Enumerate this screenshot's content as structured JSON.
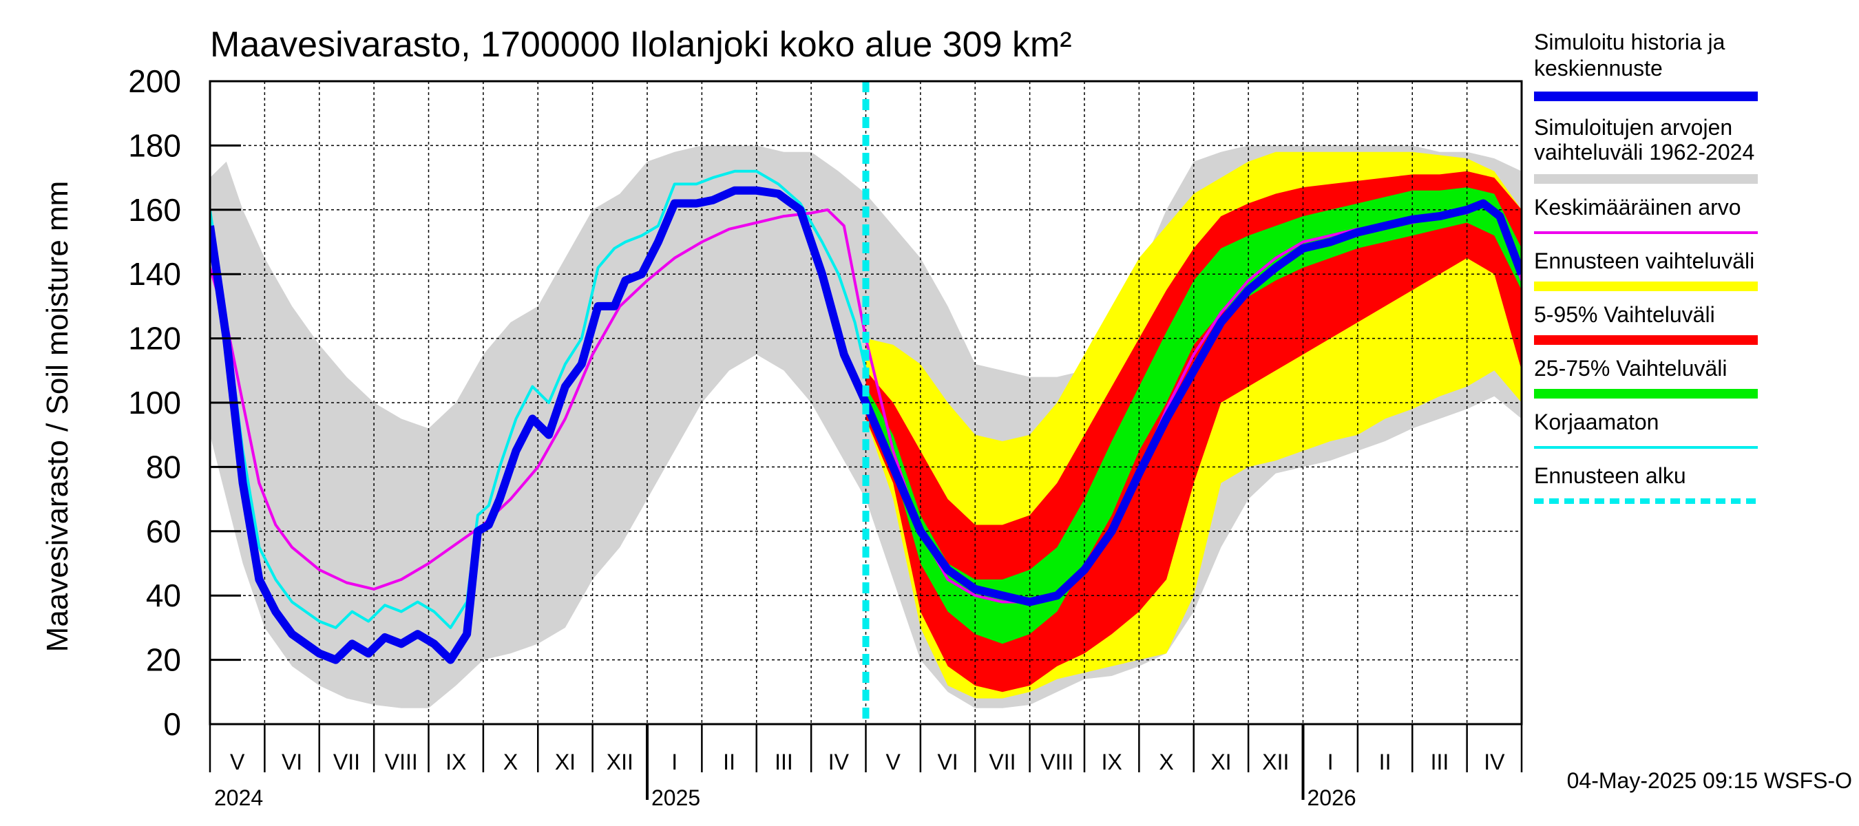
{
  "chart_data": {
    "type": "line",
    "title": "Maavesivarasto, 1700000 Ilolanjoki koko alue 309 km²",
    "ylabel": "Maavesivarasto / Soil moisture   mm",
    "ylim": [
      0,
      200
    ],
    "yticks": [
      "0",
      "20",
      "40",
      "60",
      "80",
      "100",
      "120",
      "140",
      "160",
      "180",
      "200"
    ],
    "ytick_values": [
      0,
      20,
      40,
      60,
      80,
      100,
      120,
      140,
      160,
      180,
      200
    ],
    "xrange_months": [
      0,
      24
    ],
    "month_labels": [
      "V",
      "VI",
      "VII",
      "VIII",
      "IX",
      "X",
      "XI",
      "XII",
      "I",
      "II",
      "III",
      "IV",
      "V",
      "VI",
      "VII",
      "VIII",
      "IX",
      "X",
      "XI",
      "XII",
      "I",
      "II",
      "III",
      "IV"
    ],
    "year_labels": [
      {
        "label": "2024",
        "month": 0
      },
      {
        "label": "2025",
        "month": 8
      },
      {
        "label": "2026",
        "month": 20
      }
    ],
    "year_boundaries": [
      8,
      20
    ],
    "forecast_start_month": 12.0,
    "grid": true,
    "legend_position": "right",
    "footer": "04-May-2025 09:15 WSFS-O",
    "colors": {
      "history": "#0000ee",
      "range_hist": "#d3d3d3",
      "mean": "#ee00ee",
      "forecast_range": "#ffff00",
      "p5_95": "#ff0000",
      "p25_75": "#00ee00",
      "uncorrected": "#00eeee",
      "forecast_start": "#00eeee"
    },
    "legend": [
      {
        "key": "history",
        "label": "Simuloitu historia ja",
        "label2": "keskiennuste",
        "style": "thick"
      },
      {
        "key": "range_hist",
        "label": "Simuloitujen arvojen",
        "label2": "vaihteluväli 1962-2024",
        "style": "thick"
      },
      {
        "key": "mean",
        "label": "Keskimääräinen arvo",
        "label2": "",
        "style": "thin"
      },
      {
        "key": "forecast_range",
        "label": "Ennusteen vaihteluväli",
        "label2": "",
        "style": "thick"
      },
      {
        "key": "p5_95",
        "label": "5-95% Vaihteluväli",
        "label2": "",
        "style": "thick"
      },
      {
        "key": "p25_75",
        "label": "25-75% Vaihteluväli",
        "label2": "",
        "style": "thick"
      },
      {
        "key": "uncorrected",
        "label": "Korjaamaton",
        "label2": "",
        "style": "thin"
      },
      {
        "key": "forecast_start",
        "label": "Ennusteen alku",
        "label2": "",
        "style": "dashed"
      }
    ],
    "series": {
      "range_hist_upper": {
        "x": [
          0,
          0.3,
          0.6,
          1,
          1.5,
          2,
          2.5,
          3,
          3.5,
          4,
          4.5,
          5,
          5.5,
          6,
          6.5,
          7,
          7.5,
          8,
          8.5,
          9,
          9.5,
          10,
          10.5,
          11,
          11.5,
          12,
          12.5,
          13,
          13.5,
          14,
          14.5,
          15,
          15.5,
          16,
          16.5,
          17,
          17.5,
          18,
          18.5,
          19,
          19.5,
          20,
          20.5,
          21,
          21.5,
          22,
          22.5,
          23,
          23.5,
          24
        ],
        "y": [
          170,
          175,
          160,
          145,
          130,
          118,
          108,
          100,
          95,
          92,
          100,
          115,
          125,
          130,
          145,
          160,
          165,
          175,
          178,
          180,
          180,
          180,
          178,
          178,
          172,
          165,
          155,
          145,
          130,
          112,
          110,
          108,
          108,
          110,
          120,
          140,
          160,
          175,
          178,
          180,
          180,
          180,
          180,
          180,
          180,
          180,
          178,
          178,
          176,
          172
        ]
      },
      "range_hist_lower": {
        "x": [
          0,
          0.3,
          0.6,
          1,
          1.5,
          2,
          2.5,
          3,
          3.5,
          4,
          4.5,
          5,
          5.5,
          6,
          6.5,
          7,
          7.5,
          8,
          8.5,
          9,
          9.5,
          10,
          10.5,
          11,
          11.5,
          12,
          12.5,
          13,
          13.5,
          14,
          14.5,
          15,
          15.5,
          16,
          16.5,
          17,
          17.5,
          18,
          18.5,
          19,
          19.5,
          20,
          20.5,
          21,
          21.5,
          22,
          22.5,
          23,
          23.5,
          24
        ],
        "y": [
          90,
          70,
          50,
          30,
          18,
          12,
          8,
          6,
          5,
          5,
          12,
          20,
          22,
          25,
          30,
          45,
          55,
          70,
          85,
          100,
          110,
          115,
          110,
          100,
          85,
          70,
          45,
          20,
          10,
          5,
          5,
          6,
          10,
          14,
          15,
          18,
          22,
          35,
          55,
          70,
          78,
          80,
          82,
          85,
          88,
          92,
          95,
          98,
          102,
          95
        ]
      },
      "forecast_upper": {
        "x": [
          12,
          12.5,
          13,
          13.5,
          14,
          14.5,
          15,
          15.5,
          16,
          16.5,
          17,
          17.5,
          18,
          18.5,
          19,
          19.5,
          20,
          20.5,
          21,
          21.5,
          22,
          22.5,
          23,
          23.5,
          24
        ],
        "y": [
          120,
          118,
          112,
          100,
          90,
          88,
          90,
          100,
          115,
          130,
          145,
          155,
          165,
          170,
          175,
          178,
          178,
          178,
          178,
          178,
          178,
          177,
          176,
          172,
          160
        ]
      },
      "forecast_lower": {
        "x": [
          12,
          12.5,
          13,
          13.5,
          14,
          14.5,
          15,
          15.5,
          16,
          16.5,
          17,
          17.5,
          18,
          18.5,
          19,
          19.5,
          20,
          20.5,
          21,
          21.5,
          22,
          22.5,
          23,
          23.5,
          24
        ],
        "y": [
          95,
          70,
          30,
          12,
          8,
          8,
          10,
          14,
          16,
          18,
          20,
          22,
          40,
          75,
          80,
          82,
          85,
          88,
          90,
          95,
          98,
          102,
          105,
          110,
          100
        ]
      },
      "p5_95_upper": {
        "x": [
          12,
          12.5,
          13,
          13.5,
          14,
          14.5,
          15,
          15.5,
          16,
          16.5,
          17,
          17.5,
          18,
          18.5,
          19,
          19.5,
          20,
          20.5,
          21,
          21.5,
          22,
          22.5,
          23,
          23.5,
          24
        ],
        "y": [
          110,
          100,
          85,
          70,
          62,
          62,
          65,
          75,
          90,
          105,
          120,
          135,
          148,
          158,
          162,
          165,
          167,
          168,
          169,
          170,
          171,
          171,
          172,
          170,
          160
        ]
      },
      "p5_95_lower": {
        "x": [
          12,
          12.5,
          13,
          13.5,
          14,
          14.5,
          15,
          15.5,
          16,
          16.5,
          17,
          17.5,
          18,
          18.5,
          19,
          19.5,
          20,
          20.5,
          21,
          21.5,
          22,
          22.5,
          23,
          23.5,
          24
        ],
        "y": [
          95,
          75,
          35,
          18,
          12,
          10,
          12,
          18,
          22,
          28,
          35,
          45,
          75,
          100,
          105,
          110,
          115,
          120,
          125,
          130,
          135,
          140,
          145,
          140,
          110
        ]
      },
      "p25_75_upper": {
        "x": [
          12,
          12.5,
          13,
          13.5,
          14,
          14.5,
          15,
          15.5,
          16,
          16.5,
          17,
          17.5,
          18,
          18.5,
          19,
          19.5,
          20,
          20.5,
          21,
          21.5,
          22,
          22.5,
          23,
          23.5,
          24
        ],
        "y": [
          105,
          90,
          65,
          50,
          45,
          45,
          48,
          55,
          70,
          88,
          105,
          122,
          138,
          148,
          152,
          155,
          158,
          160,
          162,
          164,
          166,
          166,
          167,
          165,
          148
        ]
      },
      "p25_75_lower": {
        "x": [
          12,
          12.5,
          13,
          13.5,
          14,
          14.5,
          15,
          15.5,
          16,
          16.5,
          17,
          17.5,
          18,
          18.5,
          19,
          19.5,
          20,
          20.5,
          21,
          21.5,
          22,
          22.5,
          23,
          23.5,
          24
        ],
        "y": [
          98,
          80,
          50,
          35,
          28,
          25,
          28,
          35,
          50,
          65,
          85,
          100,
          118,
          128,
          133,
          138,
          142,
          145,
          148,
          150,
          152,
          154,
          156,
          152,
          135
        ]
      },
      "history": {
        "x": [
          0,
          0.3,
          0.6,
          0.9,
          1.2,
          1.5,
          2,
          2.3,
          2.6,
          2.9,
          3.2,
          3.5,
          3.8,
          4.1,
          4.4,
          4.7,
          4.9,
          5.1,
          5.3,
          5.6,
          5.9,
          6.2,
          6.5,
          6.8,
          7.1,
          7.4,
          7.6,
          7.9,
          8.2,
          8.5,
          8.9,
          9.2,
          9.6,
          10,
          10.4,
          10.8,
          11.2,
          11.6,
          12,
          12.5,
          13,
          13.5,
          14,
          14.5,
          15,
          15.5,
          16,
          16.5,
          17,
          17.5,
          18,
          18.5,
          19,
          19.5,
          20,
          20.5,
          21,
          21.5,
          22,
          22.5,
          23,
          23.3,
          23.6,
          24
        ],
        "y": [
          155,
          120,
          75,
          45,
          35,
          28,
          22,
          20,
          25,
          22,
          27,
          25,
          28,
          25,
          20,
          28,
          60,
          62,
          70,
          85,
          95,
          90,
          105,
          112,
          130,
          130,
          138,
          140,
          150,
          162,
          162,
          163,
          166,
          166,
          165,
          160,
          140,
          115,
          100,
          80,
          60,
          48,
          42,
          40,
          38,
          40,
          48,
          60,
          78,
          95,
          110,
          125,
          135,
          142,
          148,
          150,
          153,
          155,
          157,
          158,
          160,
          162,
          158,
          140
        ]
      },
      "mean": {
        "x": [
          0,
          0.3,
          0.6,
          0.9,
          1.2,
          1.5,
          2,
          2.5,
          3,
          3.5,
          4,
          4.5,
          5,
          5.5,
          6,
          6.5,
          7,
          7.5,
          8,
          8.5,
          9,
          9.5,
          10,
          10.5,
          11,
          11.3,
          11.6,
          12,
          12.5,
          13,
          13.5,
          14,
          14.5,
          15,
          15.5,
          16,
          16.5,
          17,
          17.5,
          18,
          18.5,
          19,
          19.5,
          20,
          20.5,
          21,
          21.5,
          22,
          22.5,
          23,
          23.3,
          23.6,
          24
        ],
        "y": [
          142,
          125,
          100,
          75,
          62,
          55,
          48,
          44,
          42,
          45,
          50,
          56,
          62,
          70,
          80,
          95,
          115,
          130,
          138,
          145,
          150,
          154,
          156,
          158,
          159,
          160,
          155,
          120,
          85,
          60,
          45,
          40,
          38,
          38,
          40,
          48,
          60,
          78,
          98,
          115,
          128,
          138,
          145,
          150,
          152,
          154,
          155,
          156,
          158,
          159,
          162,
          158,
          138
        ]
      },
      "uncorrected": {
        "x": [
          0,
          0.3,
          0.6,
          0.9,
          1.2,
          1.5,
          2,
          2.3,
          2.6,
          2.9,
          3.2,
          3.5,
          3.8,
          4.1,
          4.4,
          4.7,
          4.9,
          5.1,
          5.3,
          5.6,
          5.9,
          6.2,
          6.5,
          6.8,
          7.1,
          7.4,
          7.6,
          7.9,
          8.2,
          8.5,
          8.9,
          9.2,
          9.6,
          10,
          10.4,
          10.8,
          11.2,
          11.5,
          11.8,
          12
        ],
        "y": [
          160,
          125,
          85,
          55,
          45,
          38,
          32,
          30,
          35,
          32,
          37,
          35,
          38,
          35,
          30,
          38,
          65,
          68,
          80,
          95,
          105,
          100,
          112,
          120,
          142,
          148,
          150,
          152,
          155,
          168,
          168,
          170,
          172,
          172,
          168,
          162,
          150,
          140,
          125,
          110
        ]
      }
    }
  }
}
